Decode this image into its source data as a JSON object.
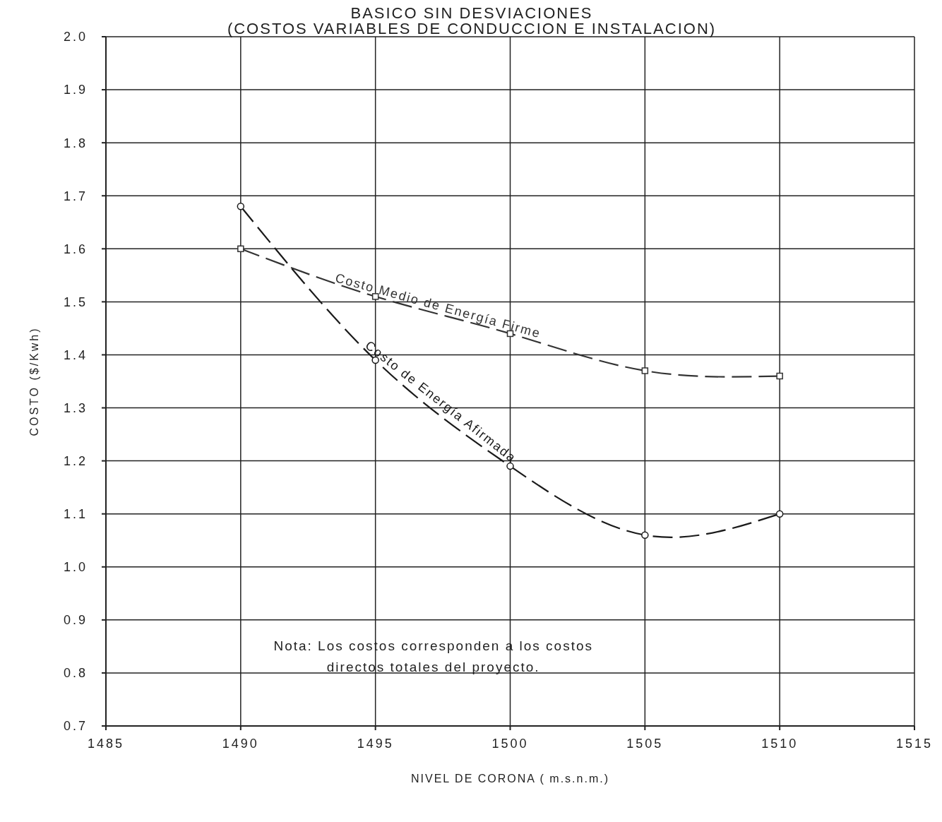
{
  "chart_data": {
    "type": "line",
    "title": "BASICO SIN DESVIACIONES",
    "subtitle": "(COSTOS VARIABLES DE CONDUCCION E INSTALACION)",
    "xlabel": "NIVEL DE CORONA ( m.s.n.m.)",
    "ylabel": "COSTO ($/Kwh)",
    "x": [
      1490,
      1495,
      1500,
      1505,
      1510
    ],
    "series": [
      {
        "name": "Costo Medio de Energía Firme",
        "color": "#333333",
        "marker": "square",
        "values": [
          1.6,
          1.51,
          1.44,
          1.37,
          1.36
        ]
      },
      {
        "name": "Costo de Energía Afirmada",
        "color": "#1a1a1a",
        "marker": "circle",
        "values": [
          1.68,
          1.39,
          1.19,
          1.06,
          1.1
        ]
      }
    ],
    "line_style": "dashed",
    "grid": true,
    "legend": false,
    "xlim": [
      1485,
      1515
    ],
    "xticks": [
      1485,
      1490,
      1495,
      1500,
      1505,
      1510,
      1515
    ],
    "ylim": [
      0.7,
      2.0
    ],
    "yticks": [
      0.7,
      0.8,
      0.9,
      {
        "value": 1.0,
        "label": "1.0"
      },
      1.1,
      1.2,
      1.3,
      1.4,
      1.5,
      1.6,
      1.7,
      1.8,
      1.9,
      {
        "value": 2.0,
        "label": "2.0"
      }
    ],
    "annotations": [
      "Nota: Los costos corresponden a los costos directos totales del proyecto."
    ]
  }
}
